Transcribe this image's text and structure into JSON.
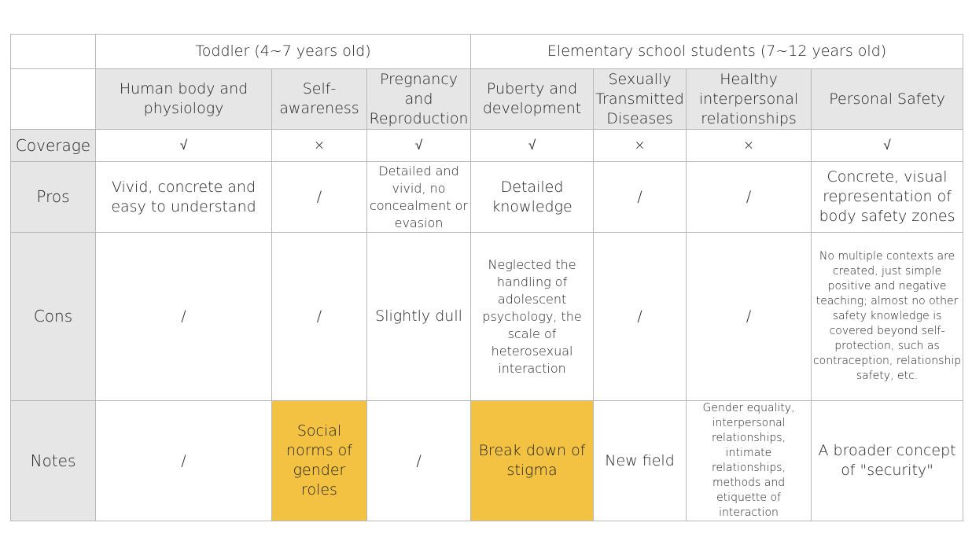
{
  "groups": {
    "toddler": "Toddler (4~7 years old)",
    "elementary": "Elementary school students (7~12 years old)"
  },
  "topics": [
    "Human body and physiology",
    "Self-awareness",
    "Pregnancy and Reproduction",
    "Puberty and development",
    "Sexually Transmitted Diseases",
    "Healthy interpersonal relationships",
    "Personal Safety"
  ],
  "row_labels": {
    "coverage": "Coverage",
    "pros": "Pros",
    "cons": "Cons",
    "notes": "Notes"
  },
  "coverage": [
    "√",
    "×",
    "√",
    "√",
    "×",
    "×",
    "√"
  ],
  "pros": [
    "Vivid, concrete and easy to understand",
    "/",
    "Detailed and vivid, no concealment or evasion",
    "Detailed knowledge",
    "/",
    "/",
    "Concrete, visual representation of body safety zones"
  ],
  "cons": [
    "/",
    "/",
    "Slightly dull",
    "Neglected the handling of adolescent psychology, the scale of heterosexual interaction",
    "/",
    "/",
    "No multiple contexts are created, just simple positive and negative teaching; almost no other safety knowledge is covered beyond self-protection, such as contraception, relationship safety, etc."
  ],
  "notes": [
    "/",
    "Social norms of gender roles",
    "/",
    "Break down of stigma",
    "New field",
    "Gender equality, interpersonal relationships, intimate relationships, methods and etiquette of interaction",
    "A broader concept of \"security\""
  ],
  "colors": {
    "header_gray": "#e6e6e6",
    "highlight": "#f3c243",
    "border": "#b8b8b8"
  }
}
